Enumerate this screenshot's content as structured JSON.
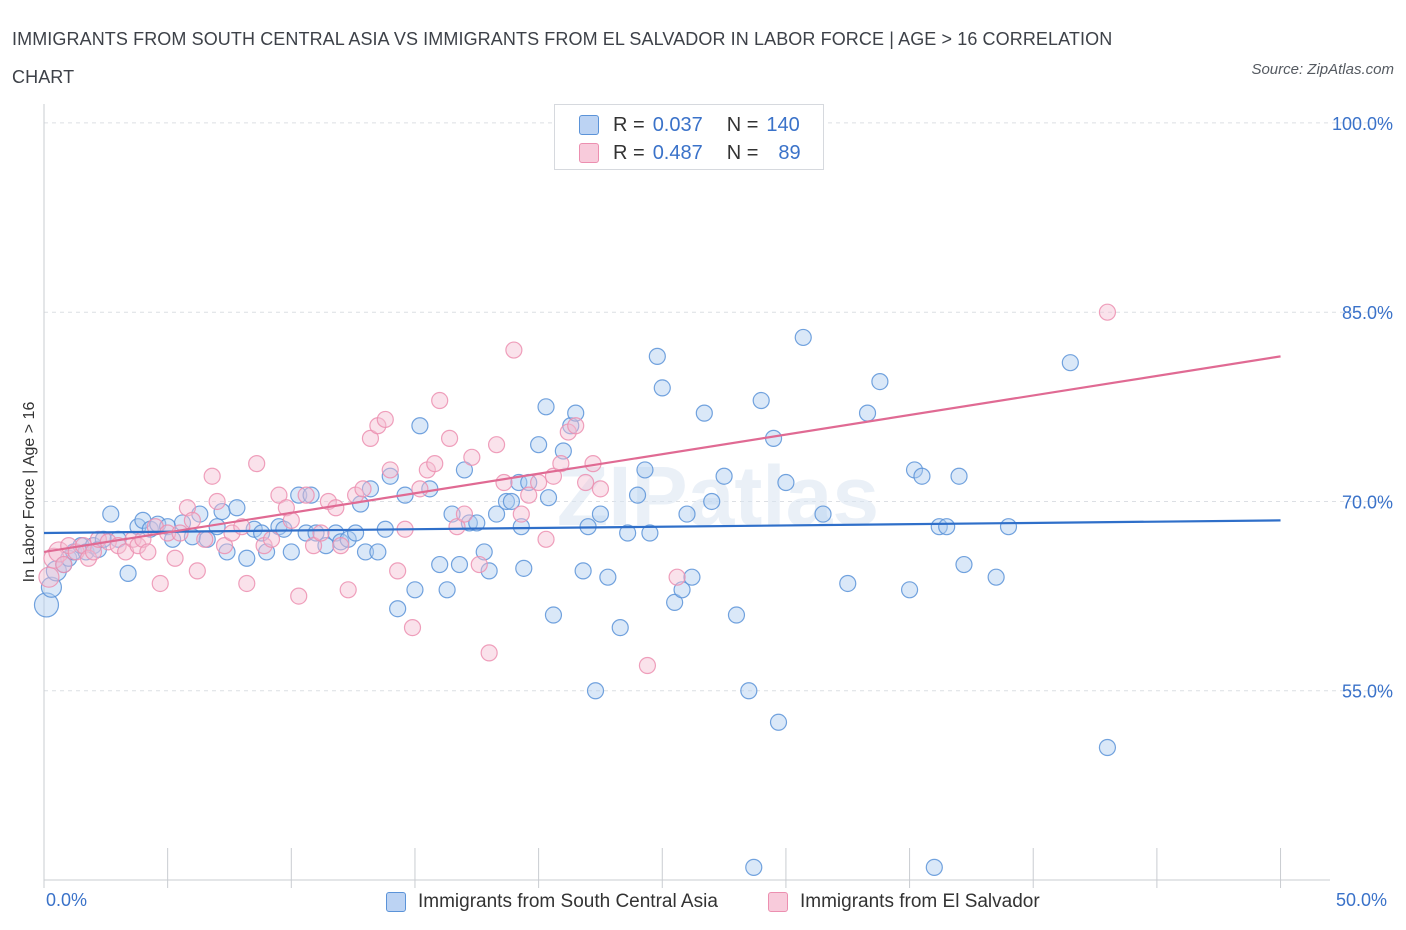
{
  "title": "IMMIGRANTS FROM SOUTH CENTRAL ASIA VS IMMIGRANTS FROM EL SALVADOR IN LABOR FORCE | AGE > 16 CORRELATION CHART",
  "source": "Source: ZipAtlas.com",
  "legend": {
    "blue": {
      "r_label": "R =",
      "r_value": "0.037",
      "n_label": "N =",
      "n_value": "140"
    },
    "pink": {
      "r_label": "R =",
      "r_value": "0.487",
      "n_label": "N =",
      "n_value": "89"
    }
  },
  "colors": {
    "blue": "#5b93d8",
    "blue_line": "#2f6fc9",
    "pink": "#ec8fb0",
    "pink_line": "#e06a93",
    "axis_text": "#3a72c9"
  },
  "chart_data": {
    "type": "scatter",
    "title": "IMMIGRANTS FROM SOUTH CENTRAL ASIA VS IMMIGRANTS FROM EL SALVADOR IN LABOR FORCE | AGE > 16 CORRELATION CHART",
    "xlabel": "",
    "ylabel": "In Labor Force | Age > 16",
    "x_tick_labels": [
      "0.0%",
      "50.0%"
    ],
    "y_tick_labels": [
      "100.0%",
      "85.0%",
      "70.0%",
      "55.0%"
    ],
    "y_ticks": [
      100,
      85,
      70,
      55
    ],
    "xlim": [
      0,
      52
    ],
    "ylim": [
      40,
      101.5
    ],
    "grid": true,
    "legend_position": "top-center",
    "watermark": "ZIPatlas",
    "series": [
      {
        "name": "Immigrants from South Central Asia",
        "color": "#5b93d8",
        "trend": [
          [
            0,
            67.5
          ],
          [
            50,
            68.5
          ]
        ],
        "points": [
          [
            0.1,
            61.8
          ],
          [
            0.3,
            63.2
          ],
          [
            0.5,
            64.5
          ],
          [
            0.8,
            65.0
          ],
          [
            1.0,
            65.5
          ],
          [
            1.2,
            66.0
          ],
          [
            1.5,
            66.5
          ],
          [
            1.7,
            66.0
          ],
          [
            2.0,
            66.5
          ],
          [
            2.2,
            66.2
          ],
          [
            2.4,
            67.0
          ],
          [
            2.7,
            69.0
          ],
          [
            3.0,
            67.0
          ],
          [
            3.4,
            64.3
          ],
          [
            3.8,
            68.0
          ],
          [
            4.0,
            68.5
          ],
          [
            4.3,
            67.8
          ],
          [
            4.6,
            68.2
          ],
          [
            5.0,
            68.0
          ],
          [
            5.2,
            67.0
          ],
          [
            5.6,
            68.3
          ],
          [
            6.0,
            67.2
          ],
          [
            6.3,
            69.0
          ],
          [
            6.6,
            67.0
          ],
          [
            7.0,
            68.0
          ],
          [
            7.2,
            69.2
          ],
          [
            7.4,
            66.0
          ],
          [
            7.8,
            69.5
          ],
          [
            8.2,
            65.5
          ],
          [
            8.5,
            67.8
          ],
          [
            8.8,
            67.5
          ],
          [
            9.0,
            66.0
          ],
          [
            9.5,
            68.0
          ],
          [
            9.7,
            67.8
          ],
          [
            10.0,
            66.0
          ],
          [
            10.3,
            70.5
          ],
          [
            10.6,
            67.5
          ],
          [
            10.8,
            70.5
          ],
          [
            11.0,
            67.5
          ],
          [
            11.4,
            66.5
          ],
          [
            11.8,
            67.5
          ],
          [
            12.0,
            66.8
          ],
          [
            12.3,
            67.0
          ],
          [
            12.6,
            67.5
          ],
          [
            12.8,
            69.8
          ],
          [
            13.0,
            66.0
          ],
          [
            13.2,
            71.0
          ],
          [
            13.5,
            66.0
          ],
          [
            13.8,
            67.8
          ],
          [
            14.0,
            72.0
          ],
          [
            14.3,
            61.5
          ],
          [
            14.6,
            70.5
          ],
          [
            15.0,
            63.0
          ],
          [
            15.2,
            76.0
          ],
          [
            15.6,
            71.0
          ],
          [
            16.0,
            65.0
          ],
          [
            16.3,
            63.0
          ],
          [
            16.5,
            69.0
          ],
          [
            16.8,
            65.0
          ],
          [
            17.0,
            72.5
          ],
          [
            17.2,
            68.3
          ],
          [
            17.5,
            68.3
          ],
          [
            17.8,
            66.0
          ],
          [
            18.0,
            64.5
          ],
          [
            18.3,
            69.0
          ],
          [
            18.7,
            70.0
          ],
          [
            18.9,
            70.0
          ],
          [
            19.2,
            71.5
          ],
          [
            19.3,
            68.0
          ],
          [
            19.4,
            64.7
          ],
          [
            19.6,
            71.5
          ],
          [
            20.0,
            74.5
          ],
          [
            20.3,
            77.5
          ],
          [
            20.4,
            70.3
          ],
          [
            20.6,
            61.0
          ],
          [
            21.0,
            74.0
          ],
          [
            21.3,
            76.0
          ],
          [
            21.5,
            77.0
          ],
          [
            21.8,
            64.5
          ],
          [
            22.0,
            68.0
          ],
          [
            22.3,
            55.0
          ],
          [
            22.5,
            69.0
          ],
          [
            22.8,
            64.0
          ],
          [
            23.3,
            60.0
          ],
          [
            23.6,
            67.5
          ],
          [
            24.0,
            70.5
          ],
          [
            24.3,
            72.5
          ],
          [
            24.5,
            67.5
          ],
          [
            24.8,
            81.5
          ],
          [
            25.0,
            79.0
          ],
          [
            25.5,
            62.0
          ],
          [
            25.8,
            63.0
          ],
          [
            26.0,
            69.0
          ],
          [
            26.2,
            64.0
          ],
          [
            26.7,
            77.0
          ],
          [
            27.0,
            70.0
          ],
          [
            27.5,
            72.0
          ],
          [
            28.0,
            61.0
          ],
          [
            28.5,
            55.0
          ],
          [
            28.7,
            41.0
          ],
          [
            29.0,
            78.0
          ],
          [
            29.5,
            75.0
          ],
          [
            29.7,
            52.5
          ],
          [
            30.0,
            71.5
          ],
          [
            30.7,
            83.0
          ],
          [
            31.5,
            69.0
          ],
          [
            32.5,
            63.5
          ],
          [
            33.3,
            77.0
          ],
          [
            33.8,
            79.5
          ],
          [
            35.0,
            63.0
          ],
          [
            35.2,
            72.5
          ],
          [
            35.5,
            72.0
          ],
          [
            36.0,
            41.0
          ],
          [
            36.2,
            68.0
          ],
          [
            36.5,
            68.0
          ],
          [
            37.0,
            72.0
          ],
          [
            37.2,
            65.0
          ],
          [
            38.5,
            64.0
          ],
          [
            39.0,
            68.0
          ],
          [
            41.5,
            81.0
          ],
          [
            43.0,
            50.5
          ]
        ]
      },
      {
        "name": "Immigrants from El Salvador",
        "color": "#ec8fb0",
        "trend": [
          [
            0,
            66.0
          ],
          [
            50,
            81.5
          ]
        ],
        "points": [
          [
            0.2,
            64.0
          ],
          [
            0.4,
            65.5
          ],
          [
            0.6,
            66.0
          ],
          [
            0.8,
            65.0
          ],
          [
            1.0,
            66.5
          ],
          [
            1.3,
            66.0
          ],
          [
            1.6,
            66.5
          ],
          [
            1.8,
            65.5
          ],
          [
            2.0,
            66.0
          ],
          [
            2.2,
            67.0
          ],
          [
            2.6,
            66.8
          ],
          [
            3.0,
            66.5
          ],
          [
            3.3,
            66.0
          ],
          [
            3.6,
            67.0
          ],
          [
            3.8,
            66.5
          ],
          [
            4.0,
            67.0
          ],
          [
            4.2,
            66.0
          ],
          [
            4.5,
            68.0
          ],
          [
            4.7,
            63.5
          ],
          [
            5.0,
            67.5
          ],
          [
            5.3,
            65.5
          ],
          [
            5.5,
            67.5
          ],
          [
            5.8,
            69.5
          ],
          [
            6.0,
            68.5
          ],
          [
            6.2,
            64.5
          ],
          [
            6.5,
            67.0
          ],
          [
            6.8,
            72.0
          ],
          [
            7.0,
            70.0
          ],
          [
            7.3,
            66.5
          ],
          [
            7.6,
            67.5
          ],
          [
            8.0,
            68.0
          ],
          [
            8.2,
            63.5
          ],
          [
            8.6,
            73.0
          ],
          [
            8.9,
            66.5
          ],
          [
            9.2,
            67.0
          ],
          [
            9.5,
            70.5
          ],
          [
            9.8,
            69.5
          ],
          [
            10.0,
            68.5
          ],
          [
            10.3,
            62.5
          ],
          [
            10.6,
            70.5
          ],
          [
            10.9,
            66.5
          ],
          [
            11.2,
            67.5
          ],
          [
            11.5,
            70.0
          ],
          [
            11.8,
            69.5
          ],
          [
            12.0,
            66.5
          ],
          [
            12.3,
            63.0
          ],
          [
            12.6,
            70.5
          ],
          [
            12.9,
            71.0
          ],
          [
            13.2,
            75.0
          ],
          [
            13.5,
            76.0
          ],
          [
            13.8,
            76.5
          ],
          [
            14.0,
            72.5
          ],
          [
            14.3,
            64.5
          ],
          [
            14.6,
            67.8
          ],
          [
            14.9,
            60.0
          ],
          [
            15.2,
            71.0
          ],
          [
            15.5,
            72.5
          ],
          [
            15.8,
            73.0
          ],
          [
            16.0,
            78.0
          ],
          [
            16.4,
            75.0
          ],
          [
            16.7,
            68.0
          ],
          [
            17.0,
            69.0
          ],
          [
            17.3,
            73.5
          ],
          [
            17.6,
            65.0
          ],
          [
            18.0,
            58.0
          ],
          [
            18.3,
            74.5
          ],
          [
            18.6,
            71.5
          ],
          [
            19.0,
            82.0
          ],
          [
            19.3,
            69.0
          ],
          [
            19.6,
            70.5
          ],
          [
            20.0,
            71.5
          ],
          [
            20.3,
            67.0
          ],
          [
            20.6,
            72.0
          ],
          [
            20.9,
            73.0
          ],
          [
            21.2,
            75.5
          ],
          [
            21.5,
            76.0
          ],
          [
            21.9,
            71.5
          ],
          [
            22.2,
            73.0
          ],
          [
            22.5,
            71.0
          ],
          [
            24.4,
            57.0
          ],
          [
            25.6,
            64.0
          ],
          [
            43.0,
            85.0
          ]
        ]
      }
    ]
  },
  "bottom_legend": {
    "blue": "Immigrants from South Central Asia",
    "pink": "Immigrants from El Salvador"
  }
}
